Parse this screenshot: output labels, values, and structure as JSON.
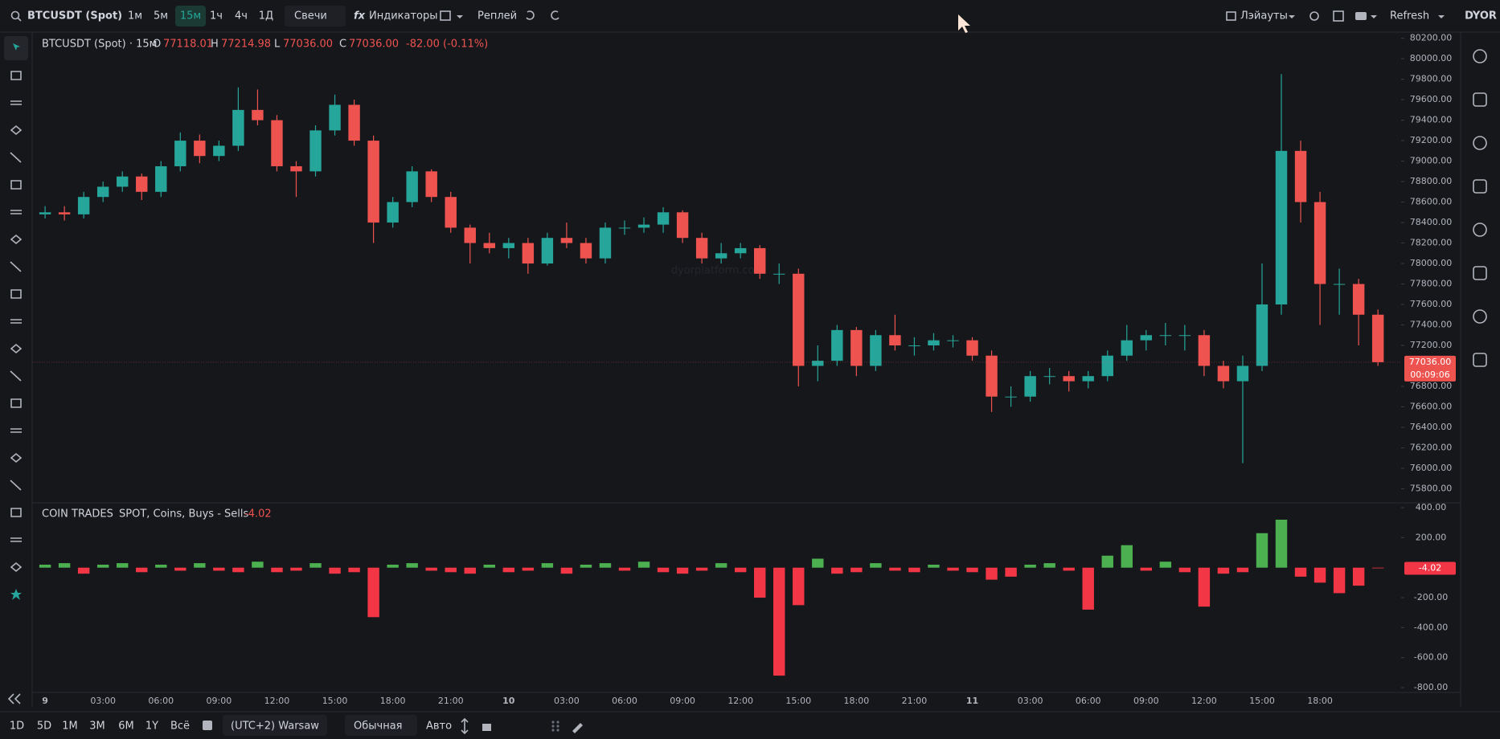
{
  "toolbar": {
    "symbol": "BTCUSDT (Spot)",
    "intervals": [
      "1м",
      "5м",
      "15м",
      "1ч",
      "4ч",
      "1Д"
    ],
    "chart_style": "Свечи",
    "indicators": "Индикаторы",
    "replay": "Реплей",
    "layouts": "Лэйауты",
    "refresh": "Refresh",
    "logo": "DYOR"
  },
  "legend": {
    "title": "BTCUSDT (Spot) · 15м",
    "o_label": "O",
    "o": "77118.01",
    "h_label": "H",
    "h": "77214.98",
    "l_label": "L",
    "l": "77036.00",
    "c_label": "C",
    "c": "77036.00",
    "change": "-82.00 (-0.11%)"
  },
  "watermark": "dyorplatform.com",
  "chart_data": [
    {
      "type": "candlestick",
      "up_color": "#26a69a",
      "down_color": "#ef5350",
      "last_price_label": "77036.00",
      "countdown": "00:09:06",
      "candles": [
        [
          78480,
          78560,
          78440,
          78500
        ],
        [
          78500,
          78560,
          78420,
          78480
        ],
        [
          78480,
          78700,
          78440,
          78650
        ],
        [
          78650,
          78800,
          78600,
          78750
        ],
        [
          78750,
          78900,
          78700,
          78850
        ],
        [
          78850,
          78880,
          78620,
          78700
        ],
        [
          78700,
          79000,
          78650,
          78950
        ],
        [
          78950,
          79280,
          78900,
          79200
        ],
        [
          79200,
          79260,
          78980,
          79050
        ],
        [
          79050,
          79200,
          79000,
          79150
        ],
        [
          79150,
          79720,
          79100,
          79500
        ],
        [
          79500,
          79700,
          79350,
          79400
        ],
        [
          79400,
          79450,
          78900,
          78950
        ],
        [
          78950,
          79000,
          78650,
          78900
        ],
        [
          78900,
          79350,
          78850,
          79300
        ],
        [
          79300,
          79650,
          79250,
          79550
        ],
        [
          79550,
          79600,
          79150,
          79200
        ],
        [
          79200,
          79250,
          78200,
          78400
        ],
        [
          78400,
          78650,
          78350,
          78600
        ],
        [
          78600,
          78950,
          78550,
          78900
        ],
        [
          78900,
          78920,
          78600,
          78650
        ],
        [
          78650,
          78700,
          78300,
          78350
        ],
        [
          78350,
          78380,
          78000,
          78200
        ],
        [
          78200,
          78300,
          78100,
          78150
        ],
        [
          78150,
          78250,
          78050,
          78200
        ],
        [
          78200,
          78250,
          77900,
          78000
        ],
        [
          78000,
          78300,
          77980,
          78250
        ],
        [
          78250,
          78400,
          78150,
          78200
        ],
        [
          78200,
          78250,
          78000,
          78050
        ],
        [
          78050,
          78400,
          78000,
          78350
        ],
        [
          78350,
          78420,
          78280,
          78350
        ],
        [
          78350,
          78450,
          78300,
          78380
        ],
        [
          78380,
          78550,
          78300,
          78500
        ],
        [
          78500,
          78520,
          78200,
          78250
        ],
        [
          78250,
          78300,
          78000,
          78050
        ],
        [
          78050,
          78200,
          78000,
          78100
        ],
        [
          78100,
          78200,
          78050,
          78150
        ],
        [
          78150,
          78180,
          77850,
          77900
        ],
        [
          77900,
          78000,
          77800,
          77900
        ],
        [
          77900,
          77950,
          76800,
          77000
        ],
        [
          77000,
          77200,
          76850,
          77050
        ],
        [
          77050,
          77400,
          77000,
          77350
        ],
        [
          77350,
          77380,
          76900,
          77000
        ],
        [
          77000,
          77350,
          76950,
          77300
        ],
        [
          77300,
          77500,
          77150,
          77200
        ],
        [
          77200,
          77280,
          77100,
          77200
        ],
        [
          77200,
          77320,
          77150,
          77250
        ],
        [
          77250,
          77300,
          77180,
          77250
        ],
        [
          77250,
          77280,
          77050,
          77100
        ],
        [
          77100,
          77150,
          76550,
          76700
        ],
        [
          76700,
          76800,
          76600,
          76700
        ],
        [
          76700,
          76950,
          76650,
          76900
        ],
        [
          76900,
          76980,
          76820,
          76900
        ],
        [
          76900,
          76950,
          76750,
          76850
        ],
        [
          76850,
          76950,
          76780,
          76900
        ],
        [
          76900,
          77150,
          76850,
          77100
        ],
        [
          77100,
          77400,
          77050,
          77250
        ],
        [
          77250,
          77350,
          77150,
          77300
        ],
        [
          77300,
          77420,
          77200,
          77300
        ],
        [
          77300,
          77400,
          77150,
          77300
        ],
        [
          77300,
          77350,
          76900,
          77000
        ],
        [
          77000,
          77050,
          76780,
          76850
        ],
        [
          76850,
          77100,
          76050,
          77000
        ],
        [
          77000,
          78000,
          76950,
          77600
        ],
        [
          77600,
          79850,
          77500,
          79100
        ],
        [
          79100,
          79200,
          78400,
          78600
        ],
        [
          78600,
          78700,
          77400,
          77800
        ],
        [
          77800,
          77950,
          77500,
          77800
        ],
        [
          77800,
          77850,
          77200,
          77500
        ],
        [
          77500,
          77550,
          77000,
          77036
        ]
      ],
      "xlim": [
        -0.67,
        70.2
      ],
      "xticks": [
        {
          "value": 0,
          "label": "9"
        },
        {
          "value": 3,
          "label": "03:00"
        },
        {
          "value": 6,
          "label": "06:00"
        },
        {
          "value": 9,
          "label": "09:00"
        },
        {
          "value": 12,
          "label": "12:00"
        },
        {
          "value": 15,
          "label": "15:00"
        },
        {
          "value": 18,
          "label": "18:00"
        },
        {
          "value": 21,
          "label": "21:00"
        },
        {
          "value": 24,
          "label": "10"
        },
        {
          "value": 27,
          "label": "03:00"
        },
        {
          "value": 30,
          "label": "06:00"
        },
        {
          "value": 33,
          "label": "09:00"
        },
        {
          "value": 36,
          "label": "12:00"
        },
        {
          "value": 39,
          "label": "15:00"
        },
        {
          "value": 42,
          "label": "18:00"
        },
        {
          "value": 45,
          "label": "21:00"
        },
        {
          "value": 48,
          "label": "11"
        },
        {
          "value": 51,
          "label": "03:00"
        },
        {
          "value": 54,
          "label": "06:00"
        },
        {
          "value": 57,
          "label": "09:00"
        },
        {
          "value": 60,
          "label": "12:00"
        },
        {
          "value": 63,
          "label": "15:00"
        },
        {
          "value": 66,
          "label": "18:00"
        }
      ],
      "ylim": [
        75670,
        80260
      ],
      "yticks": [
        {
          "value": 75800,
          "label": "75800.00"
        },
        {
          "value": 76000,
          "label": "76000.00"
        },
        {
          "value": 76200,
          "label": "76200.00"
        },
        {
          "value": 76400,
          "label": "76400.00"
        },
        {
          "value": 76600,
          "label": "76600.00"
        },
        {
          "value": 76800,
          "label": "76800.00"
        },
        {
          "value": 77200,
          "label": "77200.00"
        },
        {
          "value": 77400,
          "label": "77400.00"
        },
        {
          "value": 77600,
          "label": "77600.00"
        },
        {
          "value": 77800,
          "label": "77800.00"
        },
        {
          "value": 78000,
          "label": "78000.00"
        },
        {
          "value": 78200,
          "label": "78200.00"
        },
        {
          "value": 78400,
          "label": "78400.00"
        },
        {
          "value": 78600,
          "label": "78600.00"
        },
        {
          "value": 78800,
          "label": "78800.00"
        },
        {
          "value": 79000,
          "label": "79000.00"
        },
        {
          "value": 79200,
          "label": "79200.00"
        },
        {
          "value": 79400,
          "label": "79400.00"
        },
        {
          "value": 79600,
          "label": "79600.00"
        },
        {
          "value": 79800,
          "label": "79800.00"
        },
        {
          "value": 80000,
          "label": "80000.00"
        },
        {
          "value": 80200,
          "label": "80200.00"
        }
      ]
    },
    {
      "type": "bar",
      "title": "COIN TRADES",
      "subtitle": "SPOT, Coins, Buys - Sells",
      "last_value": -4.02,
      "up_color": "#4caf50",
      "down_color": "#f23645",
      "values": [
        20,
        30,
        -40,
        20,
        30,
        -30,
        20,
        -20,
        30,
        -20,
        -30,
        40,
        -30,
        -20,
        30,
        -40,
        -30,
        -330,
        20,
        30,
        -20,
        -30,
        -40,
        20,
        -30,
        -20,
        30,
        -40,
        20,
        30,
        -20,
        40,
        -30,
        -40,
        -20,
        30,
        -30,
        -200,
        -720,
        -250,
        60,
        -40,
        -30,
        30,
        -20,
        -30,
        20,
        -20,
        -30,
        -80,
        -60,
        20,
        30,
        -20,
        -280,
        80,
        150,
        -20,
        40,
        -30,
        -260,
        -40,
        -30,
        230,
        320,
        -60,
        -100,
        -170,
        -120,
        -4.02
      ],
      "ylim": [
        -832,
        427
      ],
      "yticks": [
        {
          "value": -800,
          "label": "-800.00"
        },
        {
          "value": -600,
          "label": "-600.00"
        },
        {
          "value": -400,
          "label": "-400.00"
        },
        {
          "value": -200,
          "label": "-200.00"
        },
        {
          "value": 200,
          "label": "200.00"
        },
        {
          "value": 400,
          "label": "400.00"
        }
      ]
    }
  ],
  "bottom": {
    "ranges": [
      "1D",
      "5D",
      "1M",
      "3M",
      "6M",
      "1Y",
      "Всё"
    ],
    "timezone": "(UTC+2) Warsaw",
    "scale_mode": "Обычная",
    "auto": "Авто"
  }
}
